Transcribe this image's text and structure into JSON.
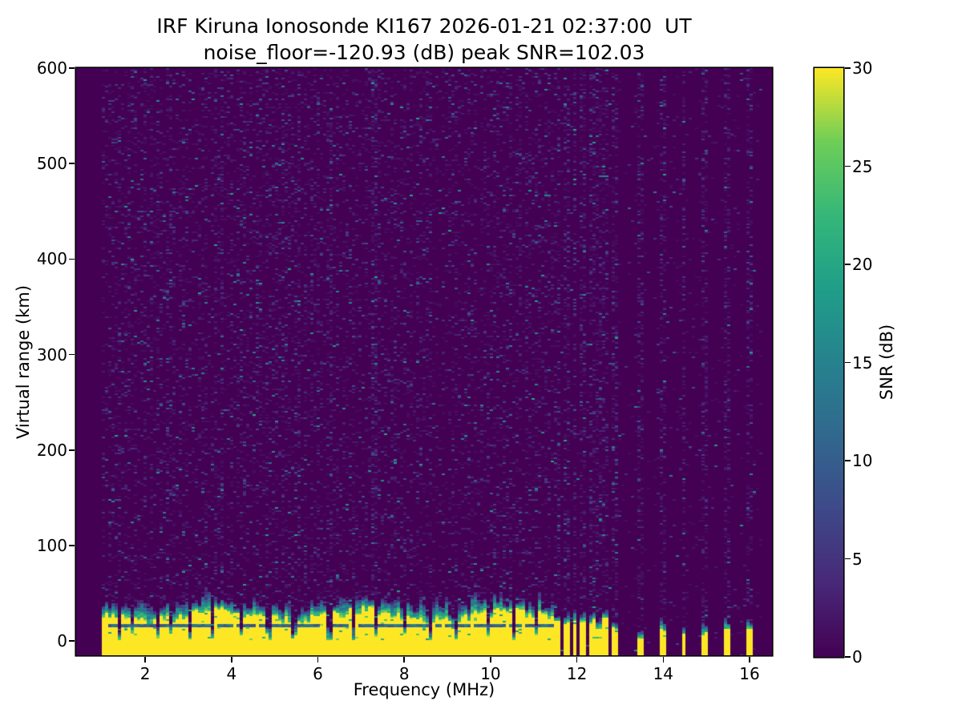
{
  "chart_data": {
    "type": "heatmap",
    "title": "IRF Kiruna Ionosonde KI167 2026-01-21 02:37:00  UT",
    "subtitle": "noise_floor=-120.93 (dB) peak SNR=102.03",
    "station": "IRF Kiruna Ionosonde KI167",
    "timestamp_ut": "2026-01-21 02:37:00",
    "noise_floor_db": -120.93,
    "peak_snr_db": 102.03,
    "xlabel": "Frequency (MHz)",
    "ylabel": "Virtual range (km)",
    "colorbar_label": "SNR (dB)",
    "colormap": "viridis",
    "xlim": [
      0.4,
      16.52
    ],
    "ylim": [
      -15,
      600
    ],
    "snr_lim_db": [
      0,
      30
    ],
    "x_ticks": [
      2,
      4,
      6,
      8,
      10,
      12,
      14,
      16
    ],
    "y_ticks": [
      0,
      100,
      200,
      300,
      400,
      500,
      600
    ],
    "colorbar_ticks": [
      0,
      5,
      10,
      15,
      20,
      25,
      30
    ],
    "grid": false,
    "sweep": {
      "start_mhz": 1.0,
      "end_mhz": 16.27
    },
    "ground_echo_band": {
      "freq_range_mhz": [
        1.0,
        11.57
      ],
      "base_km": -15,
      "saturated_top_km_mean": 28,
      "fringe_top_km_mean": 45,
      "dark_line_km": 17.5,
      "notches_mhz": [
        1.42,
        1.7,
        2.28,
        2.62,
        3.05,
        3.56,
        4.22,
        4.85,
        5.45,
        6.27,
        6.85,
        7.32,
        8.02,
        8.62,
        9.18,
        9.95,
        10.55,
        11.08
      ]
    },
    "rfi_stripes": [
      {
        "f_mhz": 11.54,
        "top_km": 22
      },
      {
        "f_mhz": 11.75,
        "top_km": 20
      },
      {
        "f_mhz": 11.95,
        "top_km": 24
      },
      {
        "f_mhz": 12.14,
        "top_km": 18
      },
      {
        "f_mhz": 12.33,
        "top_km": 20
      },
      {
        "f_mhz": 12.52,
        "top_km": 16
      },
      {
        "f_mhz": 12.69,
        "top_km": 22
      },
      {
        "f_mhz": 12.88,
        "top_km": 14
      },
      {
        "f_mhz": 13.46,
        "top_km": 4
      },
      {
        "f_mhz": 13.99,
        "top_km": 12
      },
      {
        "f_mhz": 14.48,
        "top_km": 7
      },
      {
        "f_mhz": 14.98,
        "top_km": 8
      },
      {
        "f_mhz": 15.47,
        "top_km": 14
      },
      {
        "f_mhz": 15.97,
        "top_km": 12
      }
    ],
    "noise": {
      "speckle_density_band_region": 0.15,
      "speckle_density_quiet_region": 0.028,
      "speckle_density_rfi_column": 0.3,
      "mean_speckle_snr_db": 2.8,
      "enhanced_columns_mhz": [
        3.62,
        3.78,
        5.52,
        6.3,
        7.32,
        9.2
      ]
    },
    "colors": {
      "background": "#440154",
      "saturated": "#fde725",
      "figure_background": "#ffffff",
      "text": "#000000",
      "viridis_anchors": [
        "#440154",
        "#482878",
        "#3e4989",
        "#31688e",
        "#26828e",
        "#1f9e89",
        "#35b779",
        "#6ece58",
        "#fde725"
      ]
    },
    "seed": 16721
  }
}
